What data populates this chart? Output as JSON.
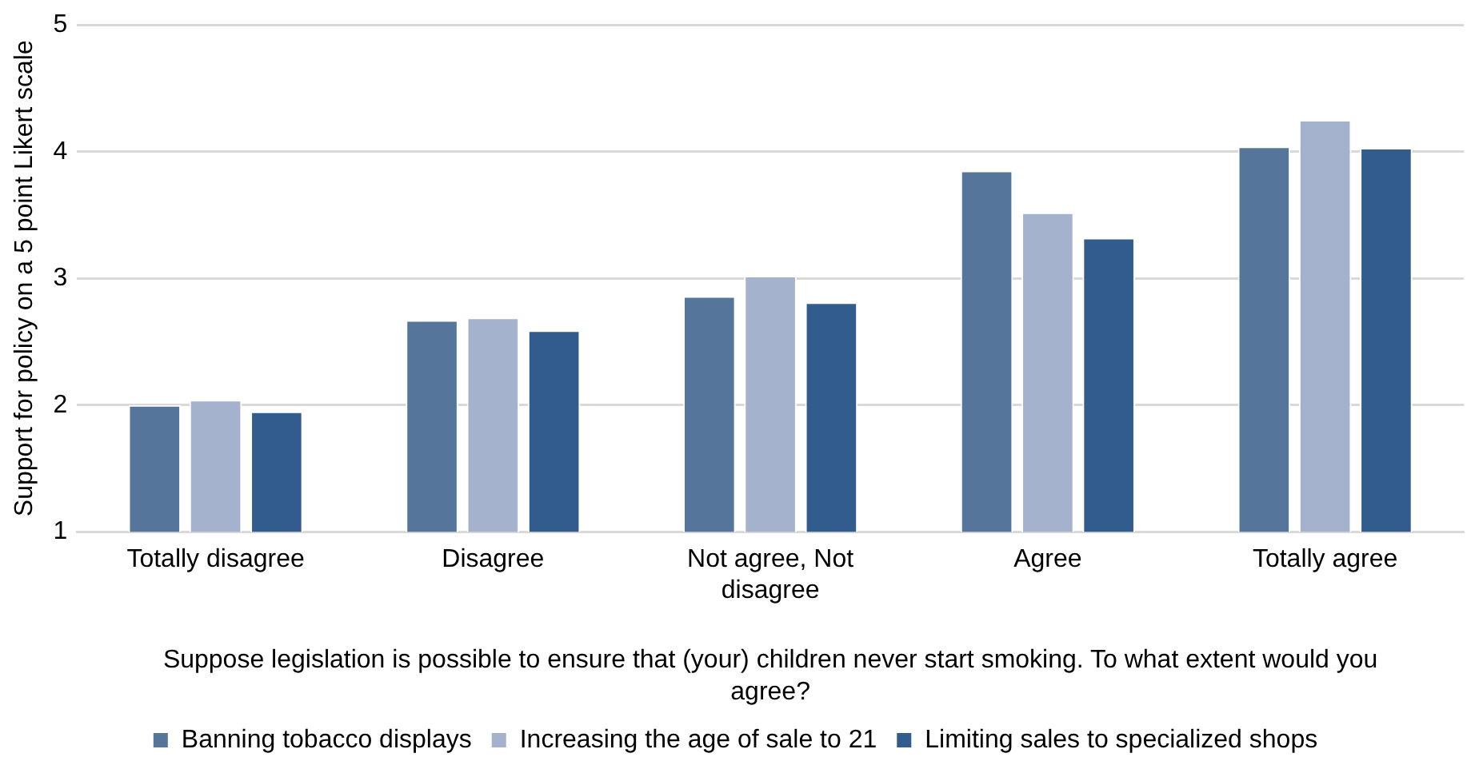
{
  "chart_data": {
    "type": "bar",
    "xlabel": "Suppose legislation is possible to ensure that (your) children never start smoking. To what extent would you agree?",
    "ylabel": "Support for policy on a 5 point Likert scale",
    "categories": [
      "Totally disagree",
      "Disagree",
      "Not agree, Not disagree",
      "Agree",
      "Totally agree"
    ],
    "series": [
      {
        "name": "Banning tobacco displays",
        "color": "#56759a",
        "values": [
          2.0,
          2.67,
          2.86,
          3.85,
          4.04
        ]
      },
      {
        "name": "Increasing the age of sale to 21",
        "color": "#a5b2cd",
        "values": [
          2.04,
          2.69,
          3.02,
          3.52,
          4.25
        ]
      },
      {
        "name": "Limiting sales to specialized shops",
        "color": "#335c8e",
        "values": [
          1.95,
          2.59,
          2.81,
          3.32,
          4.03
        ]
      }
    ],
    "ylim": [
      1,
      5
    ],
    "yticks": [
      1,
      2,
      3,
      4,
      5
    ],
    "grid": "y",
    "legend": "bottom"
  }
}
